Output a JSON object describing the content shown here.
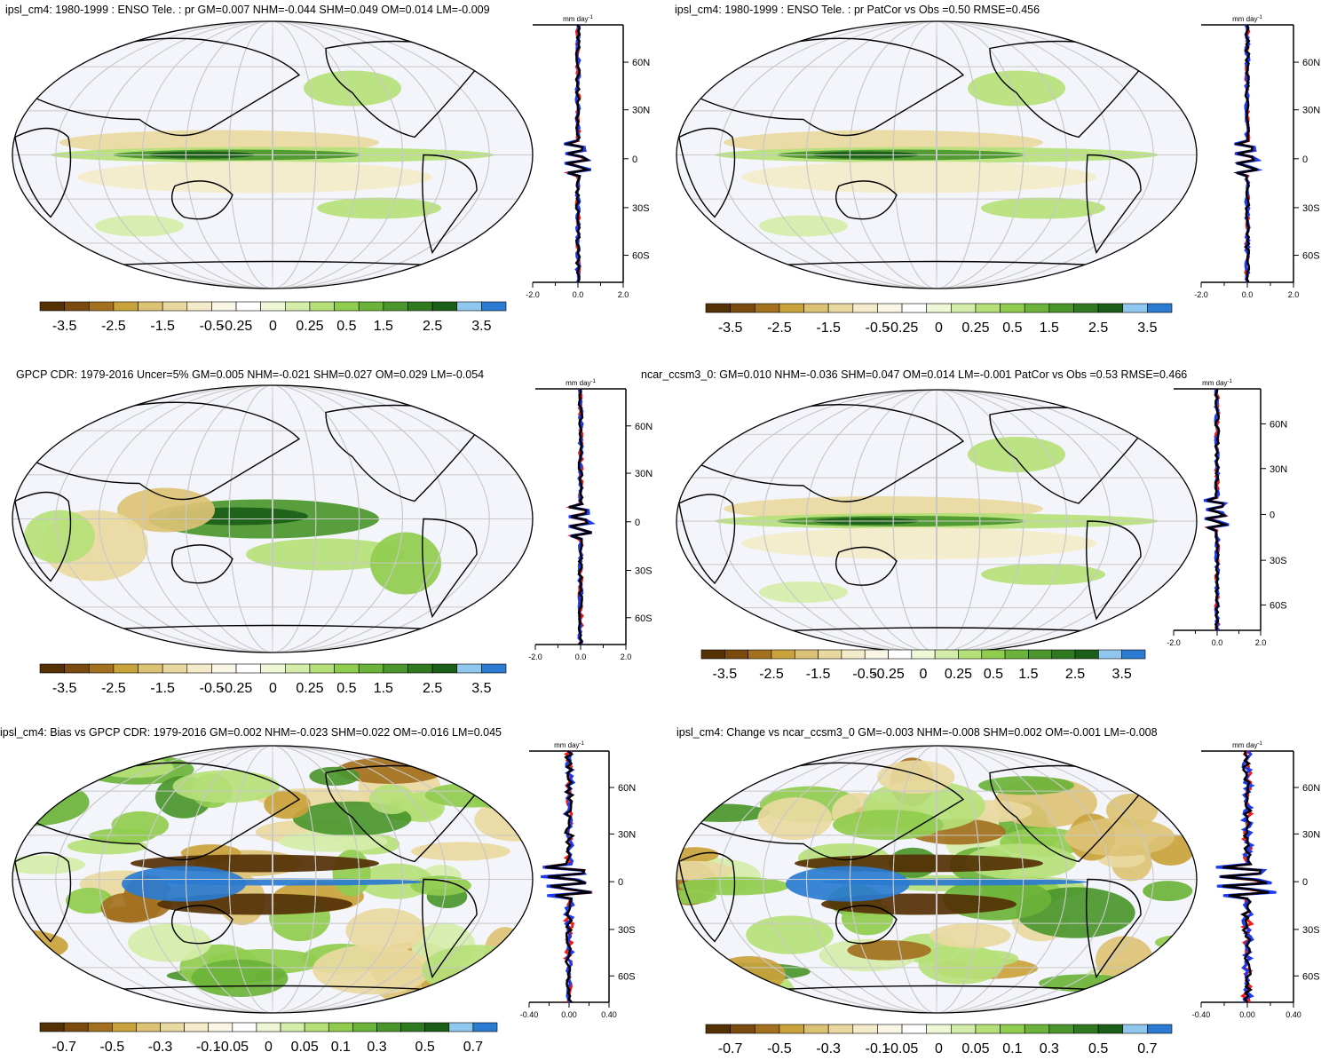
{
  "palette_main": [
    "#543005",
    "#7a4a0f",
    "#a3701f",
    "#c9a23b",
    "#dcc275",
    "#e9d9a0",
    "#f3ebc9",
    "#faf6e6",
    "#ffffff",
    "#eef7d6",
    "#d5edaa",
    "#b5df78",
    "#90cc4e",
    "#6bb33a",
    "#4a962c",
    "#2f7a21",
    "#1b5e17",
    "#8fc7ee",
    "#2a7bd1"
  ],
  "palette_bias": [
    "#543005",
    "#7a4a0f",
    "#a3701f",
    "#c9a23b",
    "#dcc275",
    "#e9d9a0",
    "#f3ebc9",
    "#faf6e6",
    "#ffffff",
    "#eef7d6",
    "#d5edaa",
    "#b5df78",
    "#90cc4e",
    "#6bb33a",
    "#4a962c",
    "#2f7a21",
    "#1b5e17",
    "#8fc7ee",
    "#2a7bd1"
  ],
  "colors": {
    "model_line": "#ef1c1c",
    "obs_line": "#1c3aef",
    "ref_line": "#000000",
    "ocean": "#f4f5fb",
    "grid": "#c8c8c8"
  },
  "zm_units": "mm day",
  "zm_units_sup": "-1",
  "lat_labels": [
    "60N",
    "30N",
    "0",
    "30S",
    "60S"
  ],
  "panels": [
    {
      "id": "p1",
      "title": "ipsl_cm4: 1980-1999 : ENSO Tele. : pr GM=0.007 NHM=-0.044 SHM=0.049 OM=0.014 LM=-0.009",
      "zm_ticks": [
        "-2.0",
        "0.0",
        "2.0"
      ],
      "cb_labels": [
        "-3.5",
        "-2.5",
        "-1.5",
        "-0.5",
        "-0.25",
        "0",
        "0.25",
        "0.5",
        "1.5",
        "2.5",
        "3.5"
      ]
    },
    {
      "id": "p2",
      "title": "ipsl_cm4: 1980-1999 : ENSO Tele. : pr PatCor vs Obs =0.50 RMSE=0.456",
      "zm_ticks": [
        "-2.0",
        "0.0",
        "2.0"
      ],
      "cb_labels": [
        "-3.5",
        "-2.5",
        "-1.5",
        "-0.5",
        "-0.25",
        "0",
        "0.25",
        "0.5",
        "1.5",
        "2.5",
        "3.5"
      ]
    },
    {
      "id": "p3",
      "title": "GPCP CDR: 1979-2016 Uncer=5% GM=0.005 NHM=-0.021 SHM=0.027 OM=0.029 LM=-0.054",
      "zm_ticks": [
        "-2.0",
        "0.0",
        "2.0"
      ],
      "cb_labels": [
        "-3.5",
        "-2.5",
        "-1.5",
        "-0.5",
        "-0.25",
        "0",
        "0.25",
        "0.5",
        "1.5",
        "2.5",
        "3.5"
      ]
    },
    {
      "id": "p4",
      "title": "ncar_ccsm3_0: GM=0.010 NHM=-0.036 SHM=0.047 OM=0.014 LM=-0.001 PatCor vs Obs =0.53 RMSE=0.466",
      "zm_ticks": [
        "-2.0",
        "0.0",
        "2.0"
      ],
      "cb_labels": [
        "-3.5",
        "-2.5",
        "-1.5",
        "-0.5",
        "-0.25",
        "0",
        "0.25",
        "0.5",
        "1.5",
        "2.5",
        "3.5"
      ]
    },
    {
      "id": "p5",
      "title": "ipsl_cm4: Bias vs GPCP CDR: 1979-2016 GM=0.002 NHM=-0.023 SHM=0.022 OM=-0.016 LM=0.045",
      "zm_ticks": [
        "-0.40",
        "0.00",
        "0.40"
      ],
      "cb_labels": [
        "-0.7",
        "-0.5",
        "-0.3",
        "-0.1",
        "-0.05",
        "0",
        "0.05",
        "0.1",
        "0.3",
        "0.5",
        "0.7"
      ]
    },
    {
      "id": "p6",
      "title": "ipsl_cm4: Change vs ncar_ccsm3_0 GM=-0.003 NHM=-0.008 SHM=0.002 OM=-0.001 LM=-0.008",
      "zm_ticks": [
        "-0.40",
        "0.00",
        "0.40"
      ],
      "cb_labels": [
        "-0.7",
        "-0.5",
        "-0.3",
        "-0.1",
        "-0.05",
        "0",
        "0.05",
        "0.1",
        "0.3",
        "0.5",
        "0.7"
      ]
    }
  ],
  "chart_data": [
    {
      "type": "heatmap",
      "title": "ipsl_cm4: 1980-1999 : ENSO Tele. : pr GM=0.007 NHM=-0.044 SHM=0.049 OM=0.014 LM=-0.009",
      "projection": "Robinson, Pacific-centered",
      "colorbar": [
        -3.5,
        -2.5,
        -1.5,
        -0.5,
        -0.25,
        0,
        0.25,
        0.5,
        1.5,
        2.5,
        3.5
      ],
      "zonal_mean": {
        "xlim": [
          -2.0,
          2.0
        ],
        "x_ticks": [
          -2.0,
          0.0,
          2.0
        ],
        "units": "mm day-1",
        "ylabels": [
          "60N",
          "30N",
          "0",
          "30S",
          "60S"
        ]
      }
    },
    {
      "type": "heatmap",
      "title": "ipsl_cm4: 1980-1999 : ENSO Tele. : pr PatCor vs Obs =0.50 RMSE=0.456",
      "colorbar": [
        -3.5,
        -2.5,
        -1.5,
        -0.5,
        -0.25,
        0,
        0.25,
        0.5,
        1.5,
        2.5,
        3.5
      ],
      "zonal_mean": {
        "xlim": [
          -2.0,
          2.0
        ],
        "x_ticks": [
          -2.0,
          0.0,
          2.0
        ],
        "units": "mm day-1"
      }
    },
    {
      "type": "heatmap",
      "title": "GPCP CDR: 1979-2016 Uncer=5% GM=0.005 NHM=-0.021 SHM=0.027 OM=0.029 LM=-0.054",
      "colorbar": [
        -3.5,
        -2.5,
        -1.5,
        -0.5,
        -0.25,
        0,
        0.25,
        0.5,
        1.5,
        2.5,
        3.5
      ],
      "zonal_mean": {
        "xlim": [
          -2.0,
          2.0
        ],
        "x_ticks": [
          -2.0,
          0.0,
          2.0
        ],
        "units": "mm day-1"
      }
    },
    {
      "type": "heatmap",
      "title": "ncar_ccsm3_0: GM=0.010 NHM=-0.036 SHM=0.047 OM=0.014 LM=-0.001 PatCor vs Obs =0.53 RMSE=0.466",
      "colorbar": [
        -3.5,
        -2.5,
        -1.5,
        -0.5,
        -0.25,
        0,
        0.25,
        0.5,
        1.5,
        2.5,
        3.5
      ],
      "zonal_mean": {
        "xlim": [
          -2.0,
          2.0
        ],
        "x_ticks": [
          -2.0,
          0.0,
          2.0
        ],
        "units": "mm day-1"
      }
    },
    {
      "type": "heatmap",
      "title": "ipsl_cm4: Bias vs GPCP CDR: 1979-2016 GM=0.002 NHM=-0.023 SHM=0.022 OM=-0.016 LM=0.045",
      "colorbar": [
        -0.7,
        -0.5,
        -0.3,
        -0.1,
        -0.05,
        0,
        0.05,
        0.1,
        0.3,
        0.5,
        0.7
      ],
      "zonal_mean": {
        "xlim": [
          -0.4,
          0.4
        ],
        "x_ticks": [
          -0.4,
          0.0,
          0.4
        ],
        "units": "mm day-1"
      }
    },
    {
      "type": "heatmap",
      "title": "ipsl_cm4: Change vs ncar_ccsm3_0 GM=-0.003 NHM=-0.008 SHM=0.002 OM=-0.001 LM=-0.008",
      "colorbar": [
        -0.7,
        -0.5,
        -0.3,
        -0.1,
        -0.05,
        0,
        0.05,
        0.1,
        0.3,
        0.5,
        0.7
      ],
      "zonal_mean": {
        "xlim": [
          -0.4,
          0.4
        ],
        "x_ticks": [
          -0.4,
          0.0,
          0.4
        ],
        "units": "mm day-1"
      }
    }
  ]
}
